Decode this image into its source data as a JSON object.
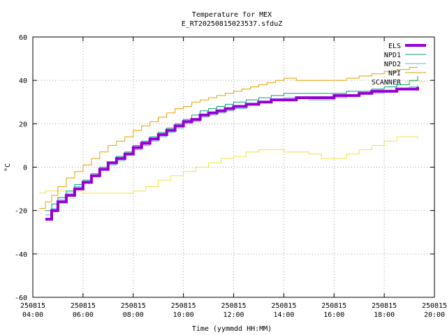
{
  "chart_data": {
    "type": "line",
    "title": "Temperature for MEX",
    "subtitle": "E_RT20250815023537.sfduZ",
    "xlabel": "Time (yymmdd HH:MM)",
    "ylabel": "°C",
    "xlim": [
      "250815 04:00",
      "250815 20:00"
    ],
    "ylim": [
      -60,
      60
    ],
    "grid": true,
    "legend_position": "top-right",
    "x_ticks": [
      {
        "date": "250815",
        "time": "04:00"
      },
      {
        "date": "250815",
        "time": "06:00"
      },
      {
        "date": "250815",
        "time": "08:00"
      },
      {
        "date": "250815",
        "time": "10:00"
      },
      {
        "date": "250815",
        "time": "12:00"
      },
      {
        "date": "250815",
        "time": "14:00"
      },
      {
        "date": "250815",
        "time": "16:00"
      },
      {
        "date": "250815",
        "time": "18:00"
      },
      {
        "date": "250815",
        "time": "20:00"
      }
    ],
    "y_ticks": [
      "60",
      "40",
      "20",
      "0",
      "-20",
      "-40",
      "-60"
    ],
    "series": [
      {
        "name": "ELS",
        "color": "#9400d3",
        "stroke_width": 4,
        "x": [
          "04:30",
          "04:45",
          "05:00",
          "05:20",
          "05:40",
          "06:00",
          "06:20",
          "06:40",
          "07:00",
          "07:20",
          "07:40",
          "08:00",
          "08:20",
          "08:40",
          "09:00",
          "09:20",
          "09:40",
          "10:00",
          "10:20",
          "10:40",
          "11:00",
          "11:20",
          "11:40",
          "12:00",
          "12:30",
          "13:00",
          "13:30",
          "14:00",
          "14:30",
          "15:00",
          "15:30",
          "16:00",
          "16:30",
          "17:00",
          "17:30",
          "18:00",
          "18:30",
          "19:00",
          "19:20"
        ],
        "values": [
          -24,
          -20,
          -16,
          -13,
          -10,
          -7,
          -4,
          -1,
          2,
          4,
          6,
          9,
          11,
          13,
          15,
          17,
          19,
          21,
          22,
          24,
          25,
          26,
          27,
          28,
          29,
          30,
          31,
          31,
          32,
          32,
          32,
          33,
          33,
          34,
          35,
          35,
          36,
          36,
          37
        ]
      },
      {
        "name": "NPD1",
        "color": "#009e73",
        "stroke_width": 1,
        "x": [
          "04:30",
          "04:45",
          "05:00",
          "05:20",
          "05:40",
          "06:00",
          "06:20",
          "06:40",
          "07:00",
          "07:20",
          "07:40",
          "08:00",
          "08:20",
          "08:40",
          "09:00",
          "09:20",
          "09:40",
          "10:00",
          "10:20",
          "10:40",
          "11:00",
          "11:20",
          "11:40",
          "12:00",
          "12:30",
          "13:00",
          "13:30",
          "14:00",
          "14:30",
          "15:00",
          "15:30",
          "16:00",
          "16:30",
          "17:00",
          "17:30",
          "18:00",
          "18:30",
          "19:00",
          "19:20"
        ],
        "values": [
          -20,
          -17,
          -14,
          -11,
          -8,
          -6,
          -3,
          0,
          2,
          5,
          7,
          10,
          12,
          14,
          16,
          18,
          20,
          22,
          24,
          26,
          27,
          28,
          29,
          30,
          31,
          32,
          33,
          34,
          34,
          34,
          34,
          34,
          35,
          35,
          36,
          37,
          38,
          40,
          42
        ]
      },
      {
        "name": "NPD2",
        "color": "#56b4e9",
        "stroke_width": 1,
        "x": [
          "04:30",
          "04:45",
          "05:00",
          "05:20",
          "05:40",
          "06:00",
          "06:20",
          "06:40",
          "07:00",
          "07:20",
          "07:40",
          "08:00",
          "08:20",
          "08:40",
          "09:00",
          "09:20",
          "09:40",
          "10:00",
          "10:20",
          "10:40",
          "11:00",
          "11:20",
          "11:40",
          "12:00",
          "12:30",
          "13:00",
          "13:30",
          "14:00",
          "14:30",
          "15:00",
          "15:30",
          "16:00",
          "16:30",
          "17:00",
          "17:30",
          "18:00",
          "18:30",
          "19:00",
          "19:20"
        ],
        "values": [
          -22,
          -19,
          -15,
          -12,
          -9,
          -7,
          -4,
          -1,
          1,
          3,
          6,
          8,
          10,
          12,
          14,
          16,
          18,
          20,
          21,
          23,
          24,
          25,
          26,
          27,
          29,
          30,
          31,
          32,
          32,
          31,
          31,
          32,
          33,
          34,
          34,
          35,
          36,
          37,
          38
        ]
      },
      {
        "name": "NPI",
        "color": "#e69f00",
        "stroke_width": 1,
        "x": [
          "04:15",
          "04:30",
          "04:45",
          "05:00",
          "05:20",
          "05:40",
          "06:00",
          "06:20",
          "06:40",
          "07:00",
          "07:20",
          "07:40",
          "08:00",
          "08:20",
          "08:40",
          "09:00",
          "09:20",
          "09:40",
          "10:00",
          "10:20",
          "10:40",
          "11:00",
          "11:20",
          "11:40",
          "12:00",
          "12:20",
          "12:40",
          "13:00",
          "13:20",
          "13:40",
          "14:00",
          "14:30",
          "15:00",
          "15:30",
          "16:00",
          "16:30",
          "17:00",
          "17:30",
          "18:00",
          "18:30",
          "19:00",
          "19:20"
        ],
        "values": [
          -19,
          -16,
          -13,
          -9,
          -5,
          -2,
          1,
          4,
          7,
          10,
          12,
          14,
          17,
          19,
          21,
          23,
          25,
          27,
          28,
          30,
          31,
          32,
          33,
          34,
          35,
          36,
          37,
          38,
          39,
          40,
          41,
          40,
          40,
          40,
          40,
          41,
          42,
          43,
          44,
          45,
          46,
          46
        ]
      },
      {
        "name": "SCANNER",
        "color": "#f0e442",
        "stroke_width": 1,
        "x": [
          "04:15",
          "04:30",
          "05:00",
          "05:30",
          "06:00",
          "06:30",
          "07:00",
          "07:30",
          "08:00",
          "08:30",
          "09:00",
          "09:30",
          "10:00",
          "10:30",
          "11:00",
          "11:30",
          "12:00",
          "12:30",
          "13:00",
          "13:30",
          "14:00",
          "14:30",
          "15:00",
          "15:30",
          "16:00",
          "16:30",
          "17:00",
          "17:30",
          "18:00",
          "18:30",
          "19:00",
          "19:20"
        ],
        "values": [
          -12,
          -11,
          -11,
          -11,
          -12,
          -12,
          -12,
          -12,
          -11,
          -9,
          -6,
          -4,
          -2,
          0,
          2,
          4,
          5,
          7,
          8,
          8,
          7,
          7,
          6,
          4,
          4,
          6,
          8,
          10,
          12,
          14,
          14,
          13
        ]
      }
    ]
  }
}
